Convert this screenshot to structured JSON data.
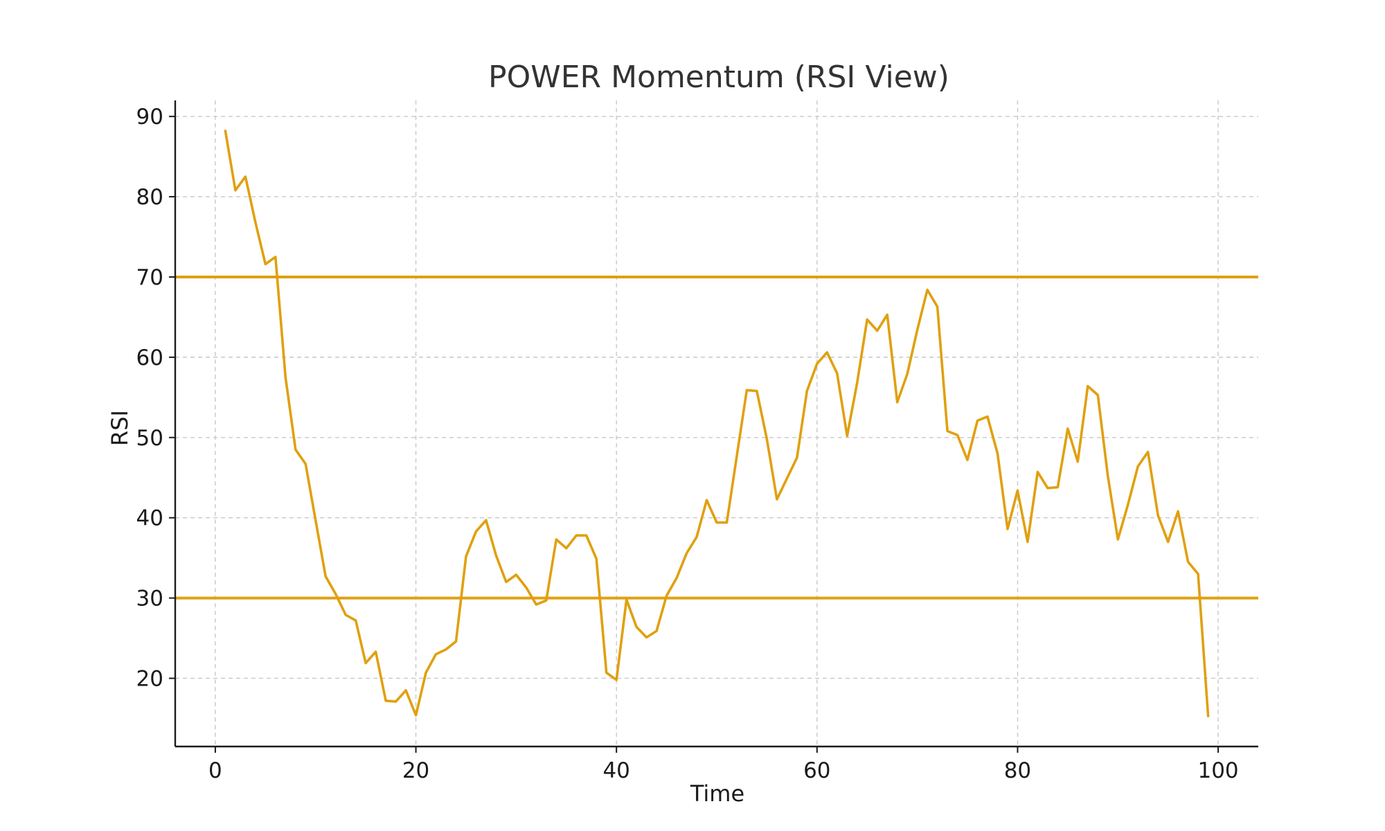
{
  "chart_data": {
    "type": "line",
    "title": "POWER Momentum (RSI View)",
    "xlabel": "Time",
    "ylabel": "RSI",
    "xlim": [
      -4,
      104
    ],
    "ylim": [
      11.5,
      92
    ],
    "xticks": [
      0,
      20,
      40,
      60,
      80,
      100
    ],
    "yticks": [
      20,
      30,
      40,
      50,
      60,
      70,
      80,
      90
    ],
    "grid": true,
    "grid_style": "dashed",
    "colors": {
      "line": "#E0A00F",
      "threshold": "#E0A00F",
      "grid": "#c8c8c8",
      "axis": "#1a1a1a"
    },
    "thresholds": [
      70,
      30
    ],
    "series": [
      {
        "x": [
          1,
          2,
          3,
          4,
          5,
          6,
          7,
          8,
          9,
          10,
          11,
          12,
          13,
          14,
          15,
          16,
          17,
          18,
          19,
          20,
          21,
          22,
          23,
          24,
          25,
          26,
          27,
          28,
          29,
          30,
          31,
          32,
          33,
          34,
          35,
          36,
          37,
          38,
          39,
          40,
          41,
          42,
          43,
          44,
          45,
          46,
          47,
          48,
          49,
          50,
          51,
          52,
          53,
          54,
          55,
          56,
          57,
          58,
          59,
          60,
          61,
          62,
          63,
          64,
          65,
          66,
          67,
          68,
          69,
          70,
          71,
          72,
          73,
          74,
          75,
          76,
          77,
          78,
          79,
          80,
          81,
          82,
          83,
          84,
          85,
          86,
          87,
          88,
          89,
          90,
          91,
          92,
          93,
          94,
          95,
          96,
          97,
          98,
          99
        ],
        "values": [
          88.2,
          80.8,
          82.5,
          76.8,
          71.6,
          72.5,
          57.5,
          48.5,
          46.7,
          39.7,
          32.7,
          30.5,
          27.9,
          27.2,
          21.9,
          23.3,
          17.2,
          17.1,
          18.5,
          15.4,
          20.7,
          23.0,
          23.6,
          24.6,
          35.2,
          38.3,
          39.7,
          35.3,
          32.0,
          32.9,
          31.3,
          29.2,
          29.7,
          37.3,
          36.2,
          37.8,
          37.8,
          34.9,
          20.7,
          19.8,
          29.8,
          26.4,
          25.1,
          25.9,
          30.3,
          32.5,
          35.6,
          37.6,
          42.2,
          39.4,
          39.4,
          47.7,
          55.9,
          55.8,
          49.8,
          42.3,
          44.9,
          47.5,
          55.8,
          59.2,
          60.6,
          58.0,
          50.2,
          56.8,
          64.7,
          63.3,
          65.3,
          54.4,
          57.9,
          63.4,
          68.4,
          66.3,
          50.8,
          50.3,
          47.2,
          52.1,
          52.6,
          48.0,
          38.6,
          43.4,
          37.0,
          45.7,
          43.7,
          43.8,
          51.1,
          47.0,
          56.4,
          55.3,
          45.2,
          37.3,
          41.6,
          46.4,
          48.2,
          40.3,
          37.0,
          40.8,
          34.5,
          33.0,
          15.3
        ]
      }
    ]
  }
}
